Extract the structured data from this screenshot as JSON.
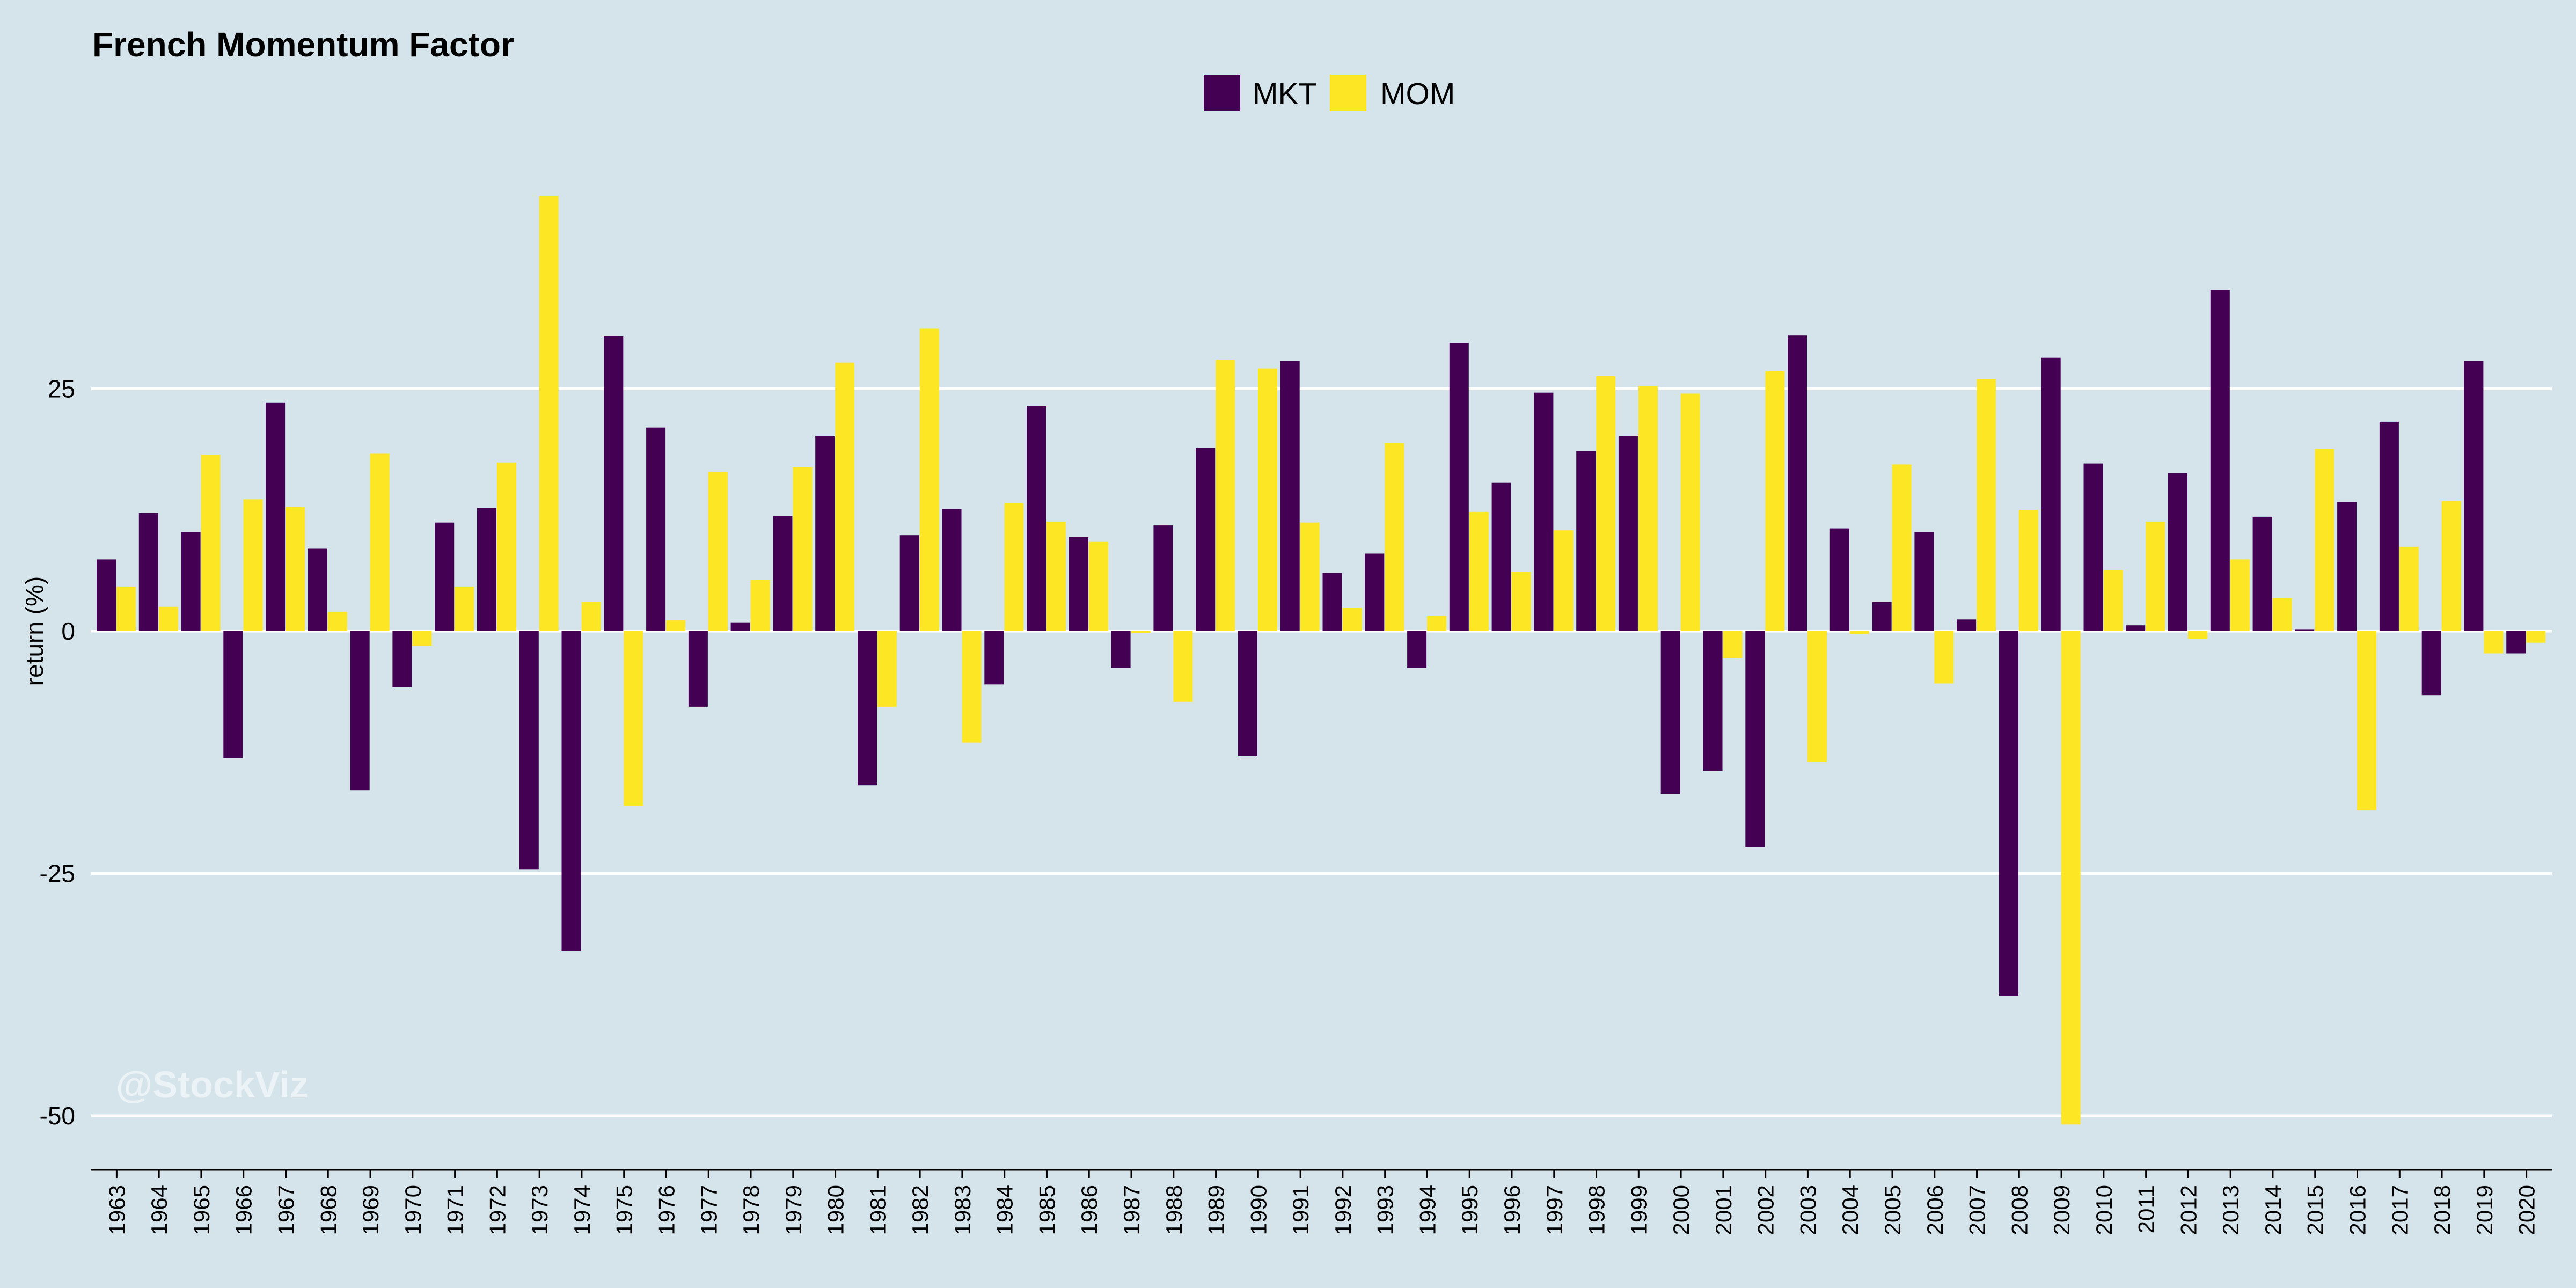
{
  "chart_data": {
    "type": "bar",
    "title": "French Momentum Factor",
    "ylabel": "return (%)",
    "xlabel": "",
    "ylim": [
      -55,
      50
    ],
    "yticks": [
      25,
      0,
      -25,
      -50
    ],
    "grid": true,
    "legend_position": "top-center",
    "watermark": "@StockViz",
    "categories": [
      "1963",
      "1964",
      "1965",
      "1966",
      "1967",
      "1968",
      "1969",
      "1970",
      "1971",
      "1972",
      "1973",
      "1974",
      "1975",
      "1976",
      "1977",
      "1978",
      "1979",
      "1980",
      "1981",
      "1982",
      "1983",
      "1984",
      "1985",
      "1986",
      "1987",
      "1988",
      "1989",
      "1990",
      "1991",
      "1992",
      "1993",
      "1994",
      "1995",
      "1996",
      "1997",
      "1998",
      "1999",
      "2000",
      "2001",
      "2002",
      "2003",
      "2004",
      "2005",
      "2006",
      "2007",
      "2008",
      "2009",
      "2010",
      "2011",
      "2012",
      "2013",
      "2014",
      "2015",
      "2016",
      "2017",
      "2018",
      "2019",
      "2020"
    ],
    "series": [
      {
        "name": "MKT",
        "color": "#440154",
        "values": [
          7.4,
          12.2,
          10.2,
          -13.1,
          23.6,
          8.5,
          -16.4,
          -5.8,
          11.2,
          12.7,
          -24.6,
          -33.0,
          30.4,
          21.0,
          -7.8,
          0.9,
          11.9,
          20.1,
          -15.9,
          9.9,
          12.6,
          -5.5,
          23.2,
          9.7,
          -3.8,
          10.9,
          18.9,
          -12.9,
          27.9,
          6.0,
          8.0,
          -3.8,
          29.7,
          15.3,
          24.6,
          18.6,
          20.1,
          -16.8,
          -14.4,
          -22.3,
          30.5,
          10.6,
          3.0,
          10.2,
          1.2,
          -37.6,
          28.2,
          17.3,
          0.6,
          16.3,
          35.2,
          11.8,
          0.2,
          13.3,
          21.6,
          -6.6,
          27.9,
          -2.3
        ]
      },
      {
        "name": "MOM",
        "color": "#fde725",
        "values": [
          4.6,
          2.5,
          18.2,
          13.6,
          12.8,
          2.0,
          18.3,
          -1.5,
          4.6,
          17.4,
          44.9,
          3.0,
          -18.0,
          1.1,
          16.4,
          5.3,
          16.9,
          27.7,
          -7.8,
          31.2,
          -11.5,
          13.2,
          11.3,
          9.2,
          -0.2,
          -7.3,
          28.0,
          27.1,
          11.2,
          2.4,
          19.4,
          1.6,
          12.3,
          6.1,
          10.4,
          26.3,
          25.3,
          24.5,
          -2.8,
          26.8,
          -13.5,
          -0.3,
          17.2,
          -5.4,
          26.0,
          12.5,
          -50.9,
          6.3,
          11.3,
          -0.8,
          7.4,
          3.4,
          18.8,
          -18.5,
          8.7,
          13.4,
          -2.3,
          -1.2
        ]
      }
    ]
  }
}
